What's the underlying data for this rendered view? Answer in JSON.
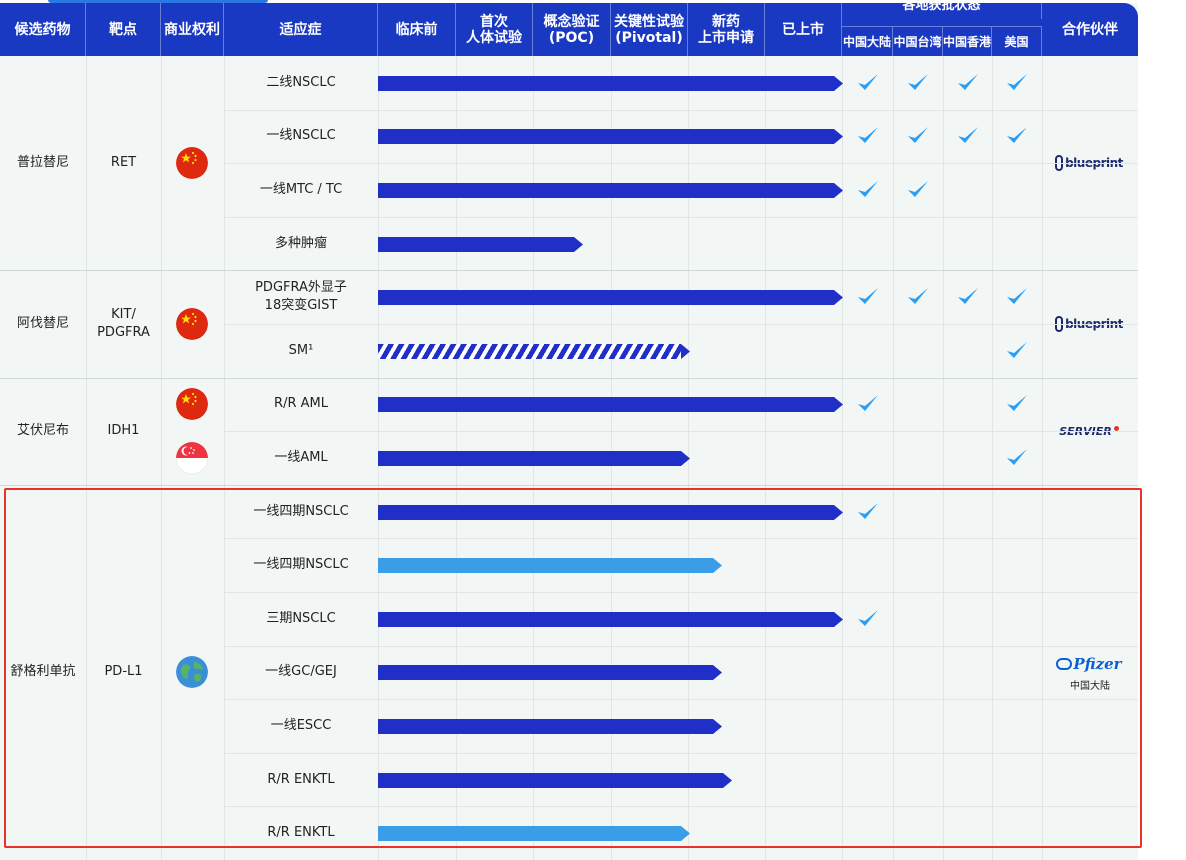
{
  "header": {
    "candidate": "候选药物",
    "target": "靶点",
    "rights": "商业权利",
    "indication": "适应症",
    "preclinical": "临床前",
    "first_in_human": "首次\n人体试验",
    "poc": "概念验证\n(POC)",
    "pivotal": "关键性试验\n(Pivotal)",
    "nda": "新药\n上市申请",
    "launched": "已上市",
    "approval_group": "各地获批状态",
    "regions": [
      "中国大陆",
      "中国台湾",
      "中国香港",
      "美国"
    ],
    "partner": "合作伙伴"
  },
  "drugs": [
    {
      "name": "普拉替尼",
      "target": "RET",
      "flag": "china-flag-icon",
      "partner_logo": "blueprint-logo",
      "partner_text": "blueprint",
      "rows": [
        {
          "indication": "二线NSCLC",
          "progress": 1.0,
          "style": "solid",
          "approvals": [
            true,
            true,
            true,
            true
          ]
        },
        {
          "indication": "一线NSCLC",
          "progress": 1.0,
          "style": "solid",
          "approvals": [
            true,
            true,
            true,
            true
          ]
        },
        {
          "indication": "一线MTC / TC",
          "progress": 1.0,
          "style": "solid",
          "approvals": [
            true,
            true,
            false,
            false
          ]
        },
        {
          "indication": "多种肿瘤",
          "progress": 0.44,
          "style": "solid",
          "approvals": [
            false,
            false,
            false,
            false
          ]
        }
      ]
    },
    {
      "name": "阿伐替尼",
      "target": "KIT/\nPDGFRA",
      "flag": "china-flag-icon",
      "partner_logo": "blueprint-logo",
      "partner_text": "blueprint",
      "rows": [
        {
          "indication": "PDGFRA外显子\n18突变GIST",
          "progress": 1.0,
          "style": "solid",
          "approvals": [
            true,
            true,
            true,
            true
          ]
        },
        {
          "indication": "SM¹",
          "progress": 0.67,
          "style": "striped",
          "approvals": [
            false,
            false,
            false,
            true
          ]
        }
      ]
    },
    {
      "name": "艾伏尼布",
      "target": "IDH1",
      "flag": "china-flag-icon",
      "flag2": "singapore-flag-icon",
      "partner_logo": "servier-logo",
      "partner_text": "SERVIER",
      "rows": [
        {
          "indication": "R/R AML",
          "progress": 1.0,
          "style": "solid",
          "approvals": [
            true,
            false,
            false,
            true
          ]
        },
        {
          "indication": "一线AML",
          "progress": 0.67,
          "style": "solid",
          "approvals": [
            false,
            false,
            false,
            true
          ]
        }
      ]
    },
    {
      "name": "舒格利单抗",
      "target": "PD-L1",
      "flag": "globe-icon",
      "partner_logo": "pfizer-logo",
      "partner_text": "Pfizer",
      "partner_region": "中国大陆",
      "rows": [
        {
          "indication": "一线四期NSCLC",
          "progress": 1.0,
          "style": "solid",
          "approvals": [
            true,
            false,
            false,
            false
          ]
        },
        {
          "indication": "一线四期NSCLC",
          "progress": 0.74,
          "style": "light",
          "approvals": [
            false,
            false,
            false,
            false
          ]
        },
        {
          "indication": "三期NSCLC",
          "progress": 1.0,
          "style": "solid",
          "approvals": [
            true,
            false,
            false,
            false
          ]
        },
        {
          "indication": "一线GC/GEJ",
          "progress": 0.74,
          "style": "solid",
          "approvals": [
            false,
            false,
            false,
            false
          ]
        },
        {
          "indication": "一线ESCC",
          "progress": 0.74,
          "style": "solid",
          "approvals": [
            false,
            false,
            false,
            false
          ]
        },
        {
          "indication": "R/R ENKTL",
          "progress": 0.76,
          "style": "solid",
          "approvals": [
            false,
            false,
            false,
            false
          ]
        },
        {
          "indication": "R/R ENKTL",
          "progress": 0.67,
          "style": "light",
          "approvals": [
            false,
            false,
            false,
            false
          ]
        }
      ]
    }
  ],
  "colors": {
    "header": "#1a39c3",
    "bar_dark": "#1f2fc7",
    "bar_light": "#3a9de8",
    "check": "#2a9df4",
    "highlight": "#e8322c"
  }
}
